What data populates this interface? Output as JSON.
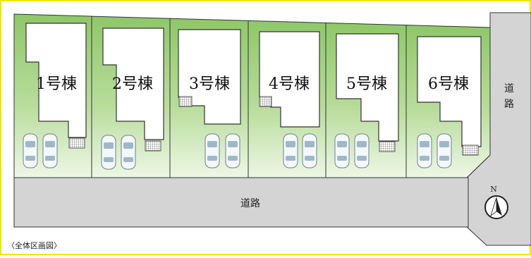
{
  "plot_labels": [
    "1号棟",
    "2号棟",
    "3号棟",
    "4号棟",
    "5号棟",
    "6号棟"
  ],
  "road_label_bottom": "道路",
  "road_label_right": [
    "道",
    "路"
  ],
  "north_label": "N",
  "caption": "〈全体区画図〉",
  "colors": {
    "frame": "#f2e600",
    "lot_green": "#8fc769",
    "lot_light": "#e9f5dd",
    "road": "#d4d4d4",
    "outline": "#333333",
    "building": "#ffffff"
  }
}
